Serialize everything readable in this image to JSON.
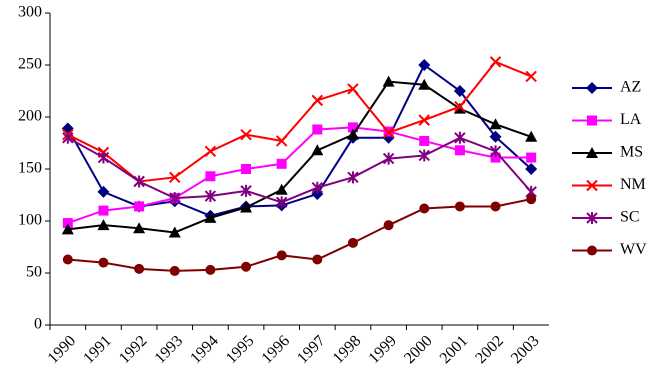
{
  "chart_data": {
    "type": "line",
    "categories": [
      "1990",
      "1991",
      "1992",
      "1993",
      "1994",
      "1995",
      "1996",
      "1997",
      "1998",
      "1999",
      "2000",
      "2001",
      "2002",
      "2003"
    ],
    "series": [
      {
        "name": "AZ",
        "color": "#000080",
        "marker": "diamond",
        "values": [
          189,
          128,
          114,
          119,
          105,
          114,
          115,
          126,
          180,
          180,
          250,
          225,
          181,
          150
        ]
      },
      {
        "name": "LA",
        "color": "#ff00ff",
        "marker": "square",
        "values": [
          98,
          110,
          114,
          122,
          143,
          150,
          155,
          188,
          190,
          186,
          177,
          168,
          161,
          161
        ]
      },
      {
        "name": "MS",
        "color": "#000000",
        "marker": "triangle",
        "values": [
          92,
          96,
          93,
          89,
          103,
          113,
          130,
          168,
          183,
          234,
          231,
          208,
          193,
          181
        ]
      },
      {
        "name": "NM",
        "color": "#ff0000",
        "marker": "x",
        "values": [
          183,
          166,
          138,
          142,
          167,
          183,
          177,
          216,
          227,
          185,
          197,
          210,
          253,
          239
        ]
      },
      {
        "name": "SC",
        "color": "#800080",
        "marker": "star",
        "values": [
          180,
          161,
          138,
          122,
          124,
          129,
          118,
          132,
          142,
          160,
          163,
          180,
          167,
          128
        ]
      },
      {
        "name": "WV",
        "color": "#800000",
        "marker": "circle",
        "values": [
          63,
          60,
          54,
          52,
          53,
          56,
          67,
          63,
          79,
          96,
          112,
          114,
          114,
          121
        ]
      }
    ],
    "ylim": [
      0,
      300
    ],
    "yticks": [
      0,
      50,
      100,
      150,
      200,
      250,
      300
    ],
    "grid": false,
    "legend": "right"
  }
}
